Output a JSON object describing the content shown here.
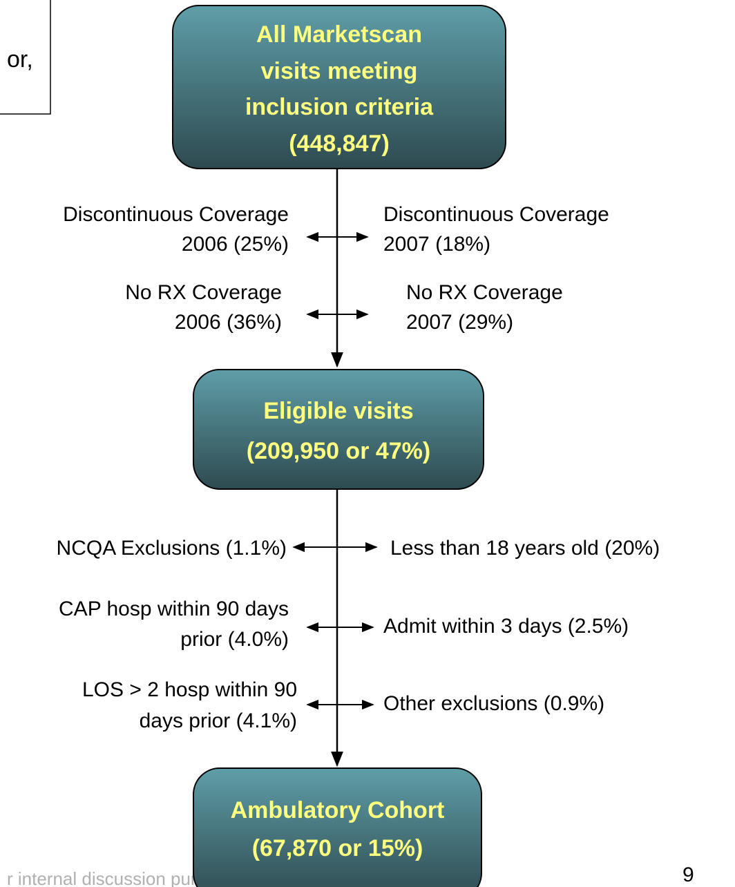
{
  "note_box": {
    "text": "or,"
  },
  "nodes": [
    {
      "lines": [
        "All Marketscan",
        "visits meeting",
        "inclusion criteria",
        "(448,847)"
      ]
    },
    {
      "lines": [
        "Eligible visits",
        "(209,950 or 47%)"
      ]
    },
    {
      "lines": [
        "Ambulatory Cohort",
        "(67,870 or 15%)"
      ]
    }
  ],
  "exclusions": [
    {
      "left": [
        "Discontinuous Coverage",
        "2006 (25%)"
      ],
      "right": [
        "Discontinuous Coverage",
        "2007 (18%)"
      ]
    },
    {
      "left": [
        "No RX Coverage",
        "2006 (36%)"
      ],
      "right": [
        "No RX Coverage",
        "2007 (29%)"
      ]
    },
    {
      "left": [
        "NCQA Exclusions (1.1%)"
      ],
      "right": [
        "Less than 18 years old (20%)"
      ]
    },
    {
      "left": [
        "CAP hosp within 90 days",
        "prior (4.0%)"
      ],
      "right": [
        "Admit within 3 days (2.5%)"
      ]
    },
    {
      "left": [
        "LOS > 2 hosp within 90",
        "days prior (4.1%)"
      ],
      "right": [
        "Other exclusions (0.9%)"
      ]
    }
  ],
  "footer": {
    "text": "r internal discussion purposes",
    "page_number": "9"
  }
}
